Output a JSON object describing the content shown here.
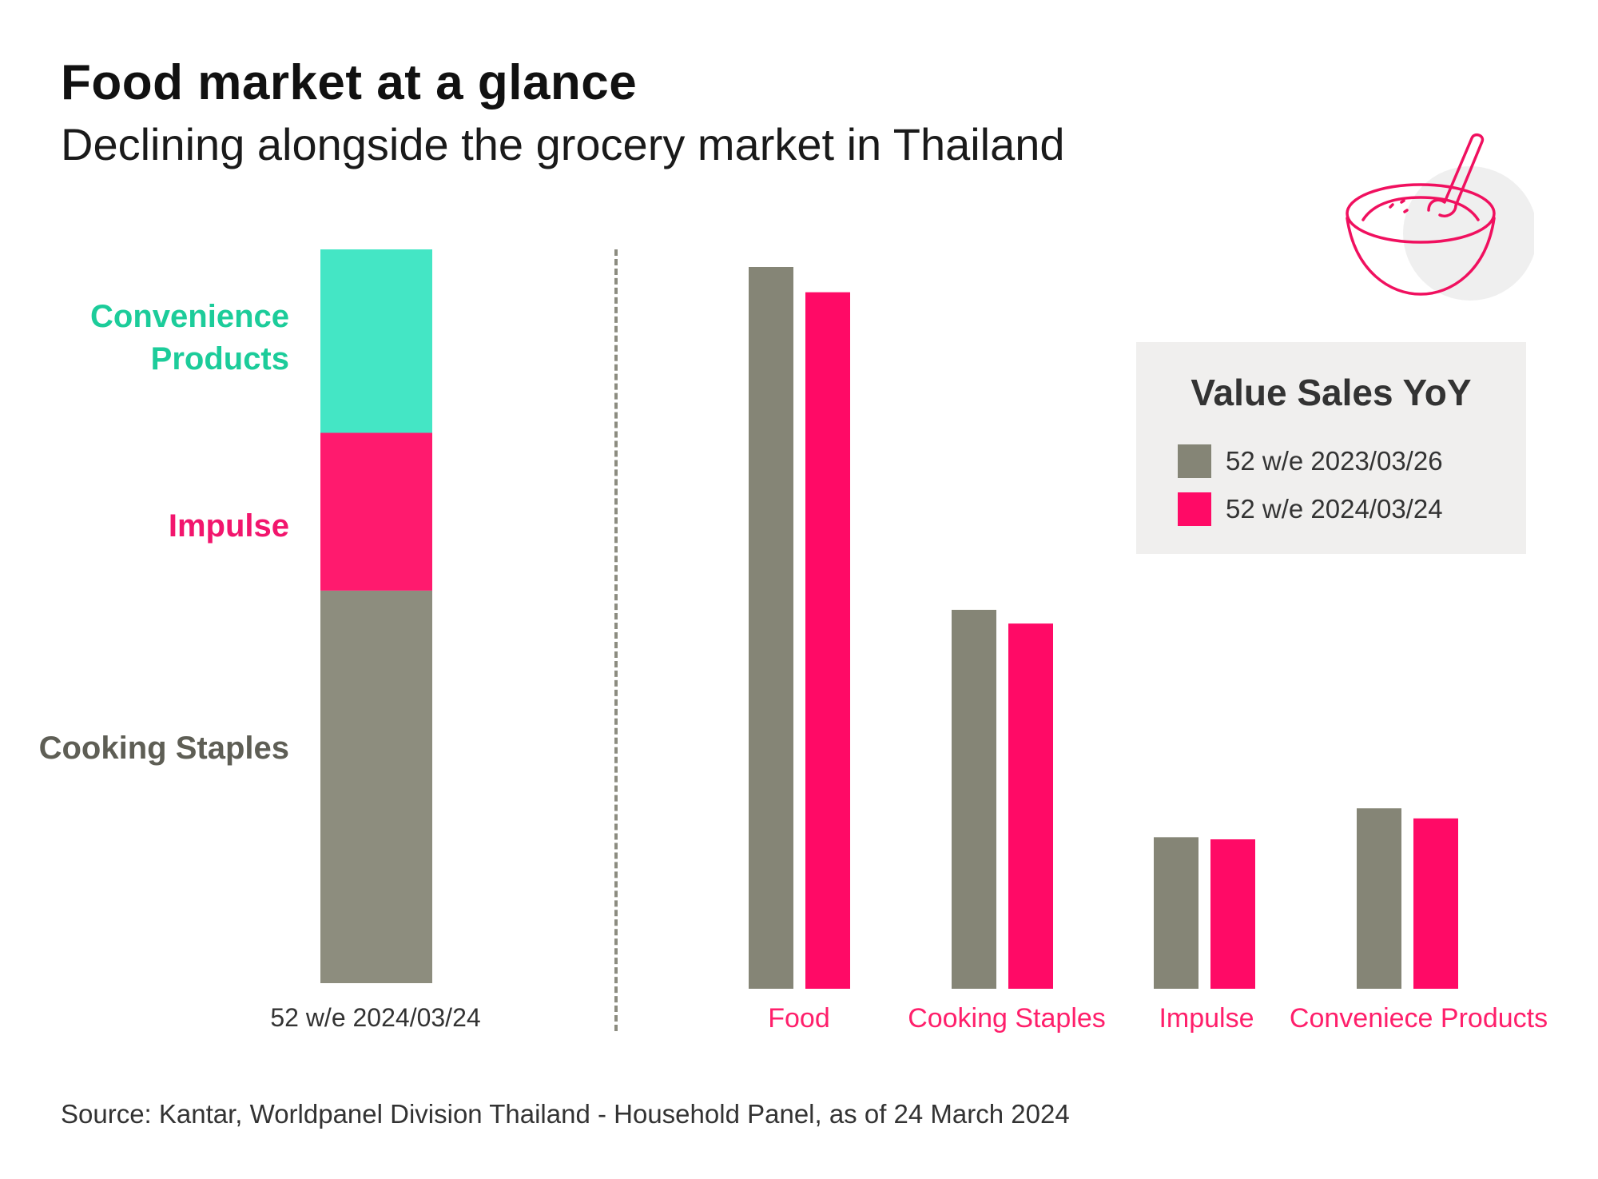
{
  "header": {
    "title": "Food market at a glance",
    "subtitle": "Declining alongside the grocery market in Thailand"
  },
  "source": "Source: Kantar, Worldpanel Division Thailand - Household Panel, as of 24 March 2024",
  "colors": {
    "convenience": "#44e6c5",
    "impulse": "#ff1a6e",
    "cooking": "#8d8d7e",
    "grey_series": "#858576",
    "pink_series": "#ff0a66",
    "label_convenience": "#1ccc9a",
    "label_impulse": "#f2166d",
    "label_cooking": "#5e5e55"
  },
  "icon": "bowl-with-spoon-icon",
  "chart_data": [
    {
      "type": "bar",
      "stacked": true,
      "categories": [
        "52 w/e 2024/03/24"
      ],
      "series": [
        {
          "name": "Cooking Staples",
          "values": [
            53.5
          ]
        },
        {
          "name": "Impulse",
          "values": [
            21.5
          ]
        },
        {
          "name": "Convenience Products",
          "values": [
            25.0
          ]
        }
      ],
      "segment_labels": [
        "Convenience Products",
        "Impulse",
        "Cooking Staples"
      ],
      "ylim": [
        0,
        100
      ]
    },
    {
      "type": "bar",
      "title": "Value Sales YoY",
      "categories": [
        "Food",
        "Cooking Staples",
        "Impulse",
        "Conveniece Products"
      ],
      "series": [
        {
          "name": "52 w/e 2023/03/26",
          "values": [
            100,
            52.5,
            21.0,
            25.0
          ]
        },
        {
          "name": "52 w/e 2024/03/24",
          "values": [
            96.5,
            50.6,
            20.7,
            23.6
          ]
        }
      ],
      "ylim": [
        0,
        100
      ],
      "legend": "right"
    }
  ]
}
